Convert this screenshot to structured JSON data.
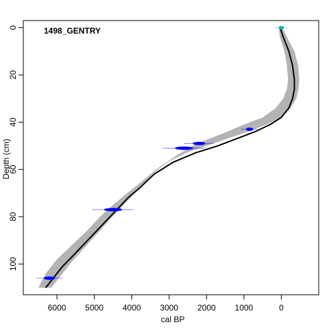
{
  "chart_data": {
    "type": "line",
    "title": "",
    "site_label": "1498_GENTRY",
    "xlabel": "cal BP",
    "ylabel": "Depth (cm)",
    "x_reversed": true,
    "y_reversed": true,
    "xlim": [
      6900,
      -1000
    ],
    "ylim": [
      -3,
      113
    ],
    "x_ticks": [
      6000,
      5000,
      4000,
      3000,
      2000,
      1000,
      0
    ],
    "y_ticks": [
      0,
      20,
      40,
      60,
      80,
      100
    ],
    "grid": false,
    "legend": "none",
    "colors": {
      "median": "#000000",
      "envelope": "#b3b3b3",
      "dates": "#0000ff",
      "surface": "#20b2aa"
    },
    "series": [
      {
        "kind": "median",
        "x": [
          30,
          -50,
          -200,
          -300,
          -350,
          -350,
          -300,
          -200,
          0,
          300,
          700,
          1200,
          1700,
          2300,
          2900,
          3400,
          3800,
          4100,
          4400,
          4700,
          5000,
          5300,
          5600,
          5850,
          6100,
          6300
        ],
        "y": [
          0,
          4,
          10,
          16,
          22,
          26,
          30,
          34,
          38,
          41,
          44,
          47,
          50,
          53,
          57,
          62,
          68,
          72,
          77,
          82,
          87,
          92,
          97,
          101,
          106,
          110
        ]
      },
      {
        "kind": "envelope-old",
        "x": [
          70,
          40,
          -80,
          -150,
          -180,
          -150,
          -50,
          150,
          500,
          1000,
          1600,
          2250,
          2800,
          3350,
          3800,
          4200,
          4500,
          4850,
          5200,
          5600,
          6000,
          6300,
          6500
        ],
        "y": [
          0,
          4,
          10,
          16,
          22,
          26,
          30,
          34,
          38,
          41,
          45,
          49,
          54,
          60,
          66,
          71,
          75,
          80,
          86,
          92,
          98,
          104,
          110
        ]
      },
      {
        "kind": "envelope-young",
        "x": [
          -30,
          -150,
          -350,
          -450,
          -480,
          -460,
          -400,
          -250,
          0,
          400,
          900,
          1450,
          2000,
          2550,
          3050,
          3450,
          3800,
          4100,
          4400,
          4800,
          5200,
          5600,
          5900,
          6150
        ],
        "y": [
          0,
          4,
          10,
          16,
          22,
          26,
          30,
          34,
          38,
          41,
          44,
          47,
          50,
          53,
          57,
          62,
          68,
          73,
          78,
          85,
          92,
          99,
          105,
          110
        ]
      }
    ],
    "dates": [
      {
        "depth": 0,
        "age": 0,
        "spread": 120,
        "type": "surface"
      },
      {
        "depth": 43,
        "age": 850,
        "spread": 160,
        "type": "14C"
      },
      {
        "depth": 49,
        "age": 2200,
        "spread": 280,
        "type": "14C"
      },
      {
        "depth": 51,
        "age": 2600,
        "spread": 400,
        "type": "14C"
      },
      {
        "depth": 77,
        "age": 4500,
        "spread": 400,
        "type": "14C"
      },
      {
        "depth": 106,
        "age": 6200,
        "spread": 250,
        "type": "14C"
      }
    ]
  }
}
